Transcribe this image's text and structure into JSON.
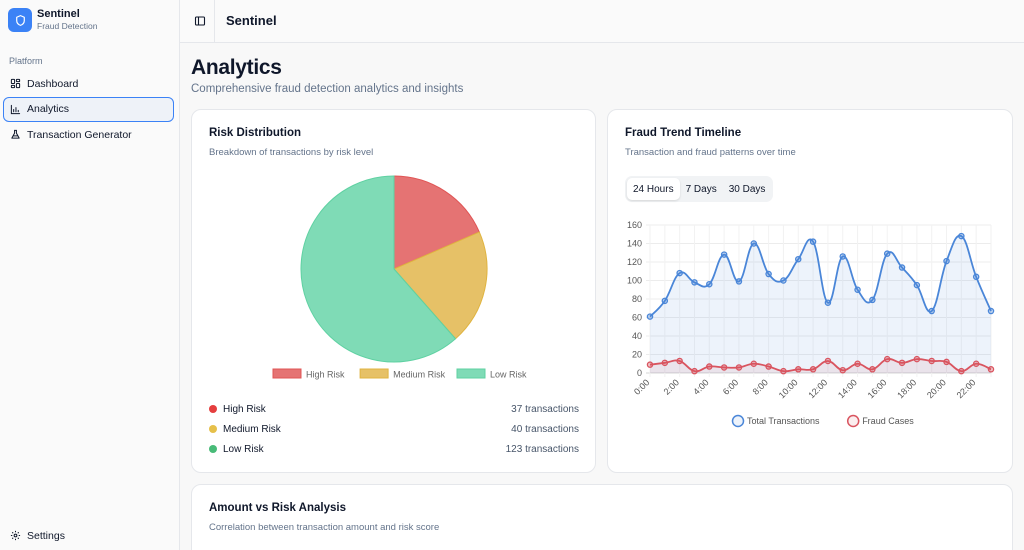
{
  "brand": {
    "title": "Sentinel",
    "subtitle": "Fraud Detection"
  },
  "sidebar": {
    "section_label": "Platform",
    "items": [
      {
        "label": "Dashboard",
        "icon": "dashboard-icon",
        "active": false
      },
      {
        "label": "Analytics",
        "icon": "bar-chart-icon",
        "active": true
      },
      {
        "label": "Transaction Generator",
        "icon": "flask-icon",
        "active": false
      }
    ],
    "settings_label": "Settings"
  },
  "header": {
    "title": "Sentinel"
  },
  "page": {
    "title": "Analytics",
    "subtitle": "Comprehensive fraud detection analytics and insights"
  },
  "risk_card": {
    "title": "Risk Distribution",
    "subtitle": "Breakdown of transactions by risk level",
    "legend": [
      {
        "name": "High Risk",
        "count": "37 transactions",
        "color": "#e53e3e"
      },
      {
        "name": "Medium Risk",
        "count": "40 transactions",
        "color": "#e6c04a"
      },
      {
        "name": "Low Risk",
        "count": "123 transactions",
        "color": "#48bb78"
      }
    ]
  },
  "trend_card": {
    "title": "Fraud Trend Timeline",
    "subtitle": "Transaction and fraud patterns over time",
    "tabs": [
      "24 Hours",
      "7 Days",
      "30 Days"
    ],
    "active_tab": "24 Hours"
  },
  "amount_card": {
    "title": "Amount vs Risk Analysis",
    "subtitle": "Correlation between transaction amount and risk score"
  },
  "chart_data": [
    {
      "type": "pie",
      "title": "Risk Distribution",
      "categories": [
        "High Risk",
        "Medium Risk",
        "Low Risk"
      ],
      "values": [
        37,
        40,
        123
      ],
      "colors": [
        "#e57373",
        "#e6c167",
        "#7fdbb6"
      ],
      "borders": [
        "#e05555",
        "#e0b440",
        "#5fd1a2"
      ],
      "legend_position": "bottom"
    },
    {
      "type": "line",
      "title": "Fraud Trend Timeline",
      "x": [
        "0:00",
        "1:00",
        "2:00",
        "3:00",
        "4:00",
        "5:00",
        "6:00",
        "7:00",
        "8:00",
        "9:00",
        "10:00",
        "11:00",
        "12:00",
        "13:00",
        "14:00",
        "15:00",
        "16:00",
        "17:00",
        "18:00",
        "19:00",
        "20:00",
        "21:00",
        "22:00",
        "23:00"
      ],
      "xticks": [
        "0:00",
        "2:00",
        "4:00",
        "6:00",
        "8:00",
        "10:00",
        "12:00",
        "14:00",
        "16:00",
        "18:00",
        "20:00",
        "22:00"
      ],
      "series": [
        {
          "name": "Total Transactions",
          "color": "#4a86d8",
          "fill": "rgba(74,134,216,0.10)",
          "values": [
            61,
            78,
            108,
            98,
            96,
            128,
            99,
            140,
            107,
            100,
            123,
            142,
            76,
            126,
            90,
            79,
            129,
            114,
            95,
            67,
            121,
            148,
            104,
            67
          ]
        },
        {
          "name": "Fraud Cases",
          "color": "#d9545f",
          "fill": "rgba(217,84,95,0.10)",
          "values": [
            9,
            11,
            13,
            2,
            7,
            6,
            6,
            10,
            7,
            2,
            4,
            4,
            13,
            3,
            10,
            4,
            15,
            11,
            15,
            13,
            12,
            2,
            10,
            4
          ]
        }
      ],
      "ylim": [
        0,
        160
      ],
      "yticks": [
        0,
        20,
        40,
        60,
        80,
        100,
        120,
        140,
        160
      ],
      "grid": true,
      "legend_position": "bottom"
    }
  ]
}
